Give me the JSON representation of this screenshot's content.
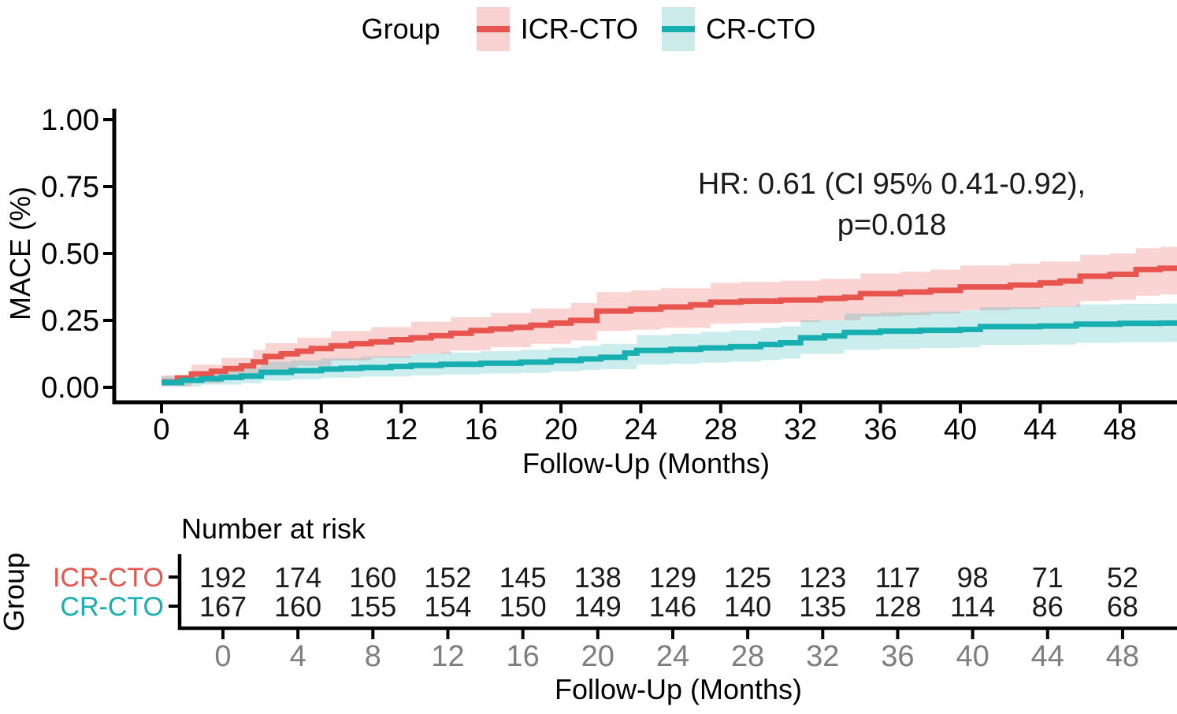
{
  "legend": {
    "title": "Group",
    "items": [
      {
        "label": "ICR-CTO",
        "line_color": "#E8554E",
        "band_color": "#F8D1D0"
      },
      {
        "label": "CR-CTO",
        "line_color": "#17AFB0",
        "band_color": "#CBEAE9"
      }
    ]
  },
  "y_axis": {
    "title": "MACE (%)",
    "tick_labels": [
      "0.00",
      "0.25",
      "0.50",
      "0.75",
      "1.00"
    ],
    "tick_values": [
      0,
      0.25,
      0.5,
      0.75,
      1
    ]
  },
  "x_axis": {
    "title": "Follow-Up (Months)",
    "tick_labels": [
      "0",
      "4",
      "8",
      "12",
      "16",
      "20",
      "24",
      "28",
      "32",
      "36",
      "40",
      "44",
      "48"
    ],
    "tick_values": [
      0,
      4,
      8,
      12,
      16,
      20,
      24,
      28,
      32,
      36,
      40,
      44,
      48
    ]
  },
  "annotation": {
    "line1": "HR: 0.61 (CI 95% 0.41-0.92),",
    "line2": "p=0.018"
  },
  "risk_table": {
    "title": "Number at risk",
    "group_label": "Group",
    "rows": [
      {
        "label": "ICR-CTO",
        "color": "#E8554E",
        "counts": [
          192,
          174,
          160,
          152,
          145,
          138,
          129,
          125,
          123,
          117,
          98,
          71,
          52
        ]
      },
      {
        "label": "CR-CTO",
        "color": "#17AFB0",
        "counts": [
          167,
          160,
          155,
          154,
          150,
          149,
          146,
          140,
          135,
          128,
          114,
          86,
          68
        ]
      }
    ],
    "x_axis": {
      "title": "Follow-Up (Months)",
      "tick_labels": [
        "0",
        "4",
        "8",
        "12",
        "16",
        "20",
        "24",
        "28",
        "32",
        "36",
        "40",
        "44",
        "48"
      ],
      "tick_values": [
        0,
        4,
        8,
        12,
        16,
        20,
        24,
        28,
        32,
        36,
        40,
        44,
        48
      ],
      "tick_label_color": "#7E7E7E"
    }
  },
  "colors": {
    "axis": "#000000",
    "tick_label": "#000000"
  },
  "chart_data": {
    "type": "line",
    "step": true,
    "title": "",
    "xlabel": "Follow-Up (Months)",
    "ylabel": "MACE (%)",
    "xlim": [
      0,
      50.8
    ],
    "ylim": [
      0,
      1
    ],
    "legend_position": "top",
    "grid": false,
    "annotation_text": "HR: 0.61 (CI 95% 0.41-0.92), p=0.018",
    "series": [
      {
        "name": "ICR-CTO",
        "color": "#E8554E",
        "points": [
          [
            0,
            0.02
          ],
          [
            0.8,
            0.035
          ],
          [
            1.5,
            0.05
          ],
          [
            2.5,
            0.06
          ],
          [
            3.2,
            0.07
          ],
          [
            4,
            0.08
          ],
          [
            4.6,
            0.095
          ],
          [
            5.2,
            0.115
          ],
          [
            6,
            0.125
          ],
          [
            6.8,
            0.135
          ],
          [
            7.5,
            0.145
          ],
          [
            8.5,
            0.155
          ],
          [
            9.5,
            0.163
          ],
          [
            10.5,
            0.17
          ],
          [
            11.5,
            0.178
          ],
          [
            12.5,
            0.185
          ],
          [
            13.5,
            0.193
          ],
          [
            14.5,
            0.202
          ],
          [
            15.5,
            0.212
          ],
          [
            16.5,
            0.218
          ],
          [
            17.5,
            0.224
          ],
          [
            18.5,
            0.232
          ],
          [
            19.5,
            0.24
          ],
          [
            20.5,
            0.25
          ],
          [
            21.8,
            0.285
          ],
          [
            23.5,
            0.292
          ],
          [
            25,
            0.3
          ],
          [
            26.5,
            0.308
          ],
          [
            27.5,
            0.318
          ],
          [
            29,
            0.322
          ],
          [
            31,
            0.326
          ],
          [
            33,
            0.332
          ],
          [
            34.2,
            0.336
          ],
          [
            35,
            0.35
          ],
          [
            37,
            0.356
          ],
          [
            38.5,
            0.362
          ],
          [
            40,
            0.375
          ],
          [
            42.5,
            0.382
          ],
          [
            44,
            0.39
          ],
          [
            45,
            0.397
          ],
          [
            46,
            0.415
          ],
          [
            47.5,
            0.422
          ],
          [
            48.8,
            0.44
          ],
          [
            50,
            0.445
          ]
        ],
        "band": [
          [
            0,
            0.004,
            0.045
          ],
          [
            1.5,
            0.015,
            0.085
          ],
          [
            3,
            0.03,
            0.11
          ],
          [
            4.6,
            0.05,
            0.14
          ],
          [
            5.2,
            0.06,
            0.165
          ],
          [
            6.8,
            0.08,
            0.185
          ],
          [
            8.5,
            0.1,
            0.21
          ],
          [
            10.5,
            0.11,
            0.225
          ],
          [
            12.5,
            0.125,
            0.245
          ],
          [
            14.5,
            0.138,
            0.262
          ],
          [
            16.5,
            0.15,
            0.278
          ],
          [
            18.5,
            0.162,
            0.295
          ],
          [
            20.5,
            0.175,
            0.315
          ],
          [
            21.8,
            0.21,
            0.355
          ],
          [
            23.5,
            0.215,
            0.362
          ],
          [
            25,
            0.222,
            0.37
          ],
          [
            27.5,
            0.238,
            0.39
          ],
          [
            29,
            0.24,
            0.394
          ],
          [
            31,
            0.244,
            0.398
          ],
          [
            33,
            0.25,
            0.405
          ],
          [
            35,
            0.265,
            0.425
          ],
          [
            37,
            0.27,
            0.432
          ],
          [
            38.5,
            0.275,
            0.44
          ],
          [
            40,
            0.288,
            0.455
          ],
          [
            42.5,
            0.292,
            0.462
          ],
          [
            44,
            0.3,
            0.47
          ],
          [
            46,
            0.322,
            0.495
          ],
          [
            47.5,
            0.327,
            0.5
          ],
          [
            48.8,
            0.342,
            0.52
          ],
          [
            50,
            0.347,
            0.525
          ]
        ]
      },
      {
        "name": "CR-CTO",
        "color": "#17AFB0",
        "points": [
          [
            0,
            0.018
          ],
          [
            1,
            0.026
          ],
          [
            2,
            0.032
          ],
          [
            3,
            0.037
          ],
          [
            4,
            0.042
          ],
          [
            5,
            0.056
          ],
          [
            6.5,
            0.062
          ],
          [
            8,
            0.068
          ],
          [
            9,
            0.071
          ],
          [
            10,
            0.074
          ],
          [
            11.5,
            0.078
          ],
          [
            12.5,
            0.082
          ],
          [
            14,
            0.086
          ],
          [
            16,
            0.09
          ],
          [
            18,
            0.094
          ],
          [
            19.5,
            0.1
          ],
          [
            21,
            0.106
          ],
          [
            22,
            0.112
          ],
          [
            23.2,
            0.128
          ],
          [
            23.8,
            0.138
          ],
          [
            25.5,
            0.142
          ],
          [
            27,
            0.147
          ],
          [
            28.5,
            0.152
          ],
          [
            30,
            0.16
          ],
          [
            31,
            0.166
          ],
          [
            32,
            0.185
          ],
          [
            33.2,
            0.192
          ],
          [
            34.2,
            0.205
          ],
          [
            36,
            0.21
          ],
          [
            38,
            0.213
          ],
          [
            40,
            0.216
          ],
          [
            41,
            0.227
          ],
          [
            44,
            0.229
          ],
          [
            45.8,
            0.236
          ],
          [
            48,
            0.239
          ],
          [
            50,
            0.24
          ]
        ],
        "band": [
          [
            0,
            0.003,
            0.04
          ],
          [
            2,
            0.01,
            0.062
          ],
          [
            4,
            0.015,
            0.075
          ],
          [
            5,
            0.025,
            0.095
          ],
          [
            6.5,
            0.03,
            0.1
          ],
          [
            8,
            0.036,
            0.108
          ],
          [
            10,
            0.04,
            0.115
          ],
          [
            12.5,
            0.045,
            0.125
          ],
          [
            14,
            0.048,
            0.13
          ],
          [
            16,
            0.051,
            0.135
          ],
          [
            18,
            0.054,
            0.14
          ],
          [
            19.5,
            0.06,
            0.148
          ],
          [
            21,
            0.064,
            0.155
          ],
          [
            22,
            0.068,
            0.162
          ],
          [
            23.8,
            0.085,
            0.195
          ],
          [
            25.5,
            0.088,
            0.2
          ],
          [
            27,
            0.092,
            0.207
          ],
          [
            28.5,
            0.096,
            0.212
          ],
          [
            30,
            0.102,
            0.222
          ],
          [
            31,
            0.107,
            0.228
          ],
          [
            32,
            0.125,
            0.25
          ],
          [
            34.2,
            0.14,
            0.275
          ],
          [
            36,
            0.144,
            0.28
          ],
          [
            38,
            0.147,
            0.283
          ],
          [
            40,
            0.149,
            0.287
          ],
          [
            41,
            0.158,
            0.3
          ],
          [
            44,
            0.16,
            0.302
          ],
          [
            45.8,
            0.166,
            0.31
          ],
          [
            48,
            0.168,
            0.312
          ],
          [
            50,
            0.17,
            0.313
          ]
        ]
      }
    ]
  }
}
